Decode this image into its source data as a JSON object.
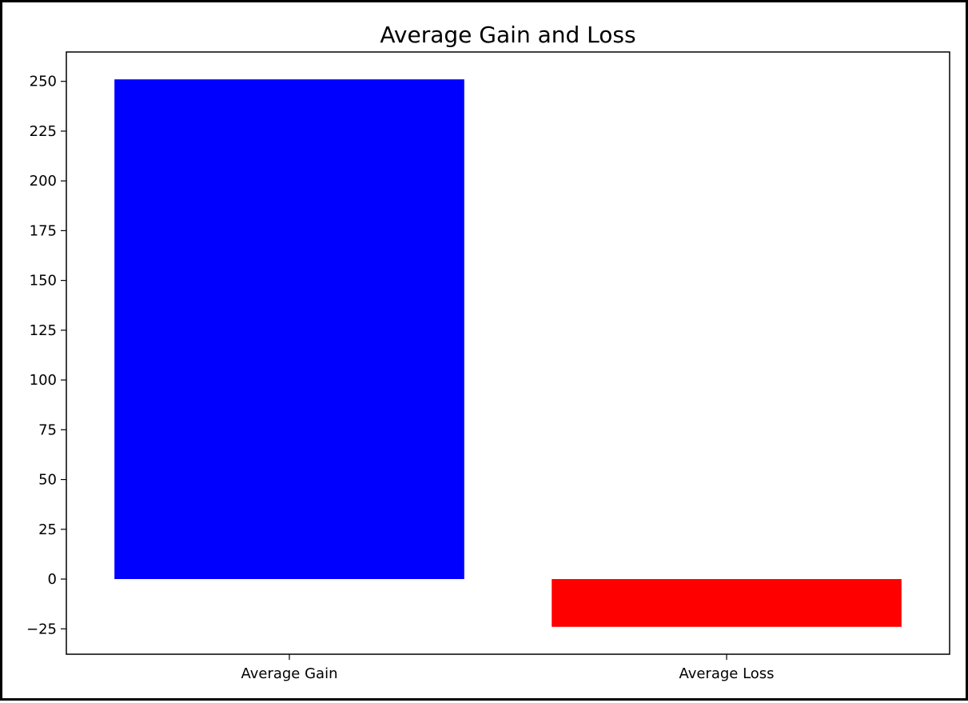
{
  "chart_data": {
    "type": "bar",
    "title": "Average Gain and Loss",
    "xlabel": "",
    "ylabel": "",
    "categories": [
      "Average Gain",
      "Average Loss"
    ],
    "values": [
      251,
      -24
    ],
    "colors": [
      "#0000ff",
      "#ff0000"
    ],
    "ylim": [
      -37.75,
      264.75
    ],
    "yticks": [
      -25,
      0,
      25,
      50,
      75,
      100,
      125,
      150,
      175,
      200,
      225,
      250
    ],
    "ytick_labels": [
      "−25",
      "0",
      "25",
      "50",
      "75",
      "100",
      "125",
      "150",
      "175",
      "200",
      "225",
      "250"
    ],
    "grid": false,
    "legend": "none"
  }
}
